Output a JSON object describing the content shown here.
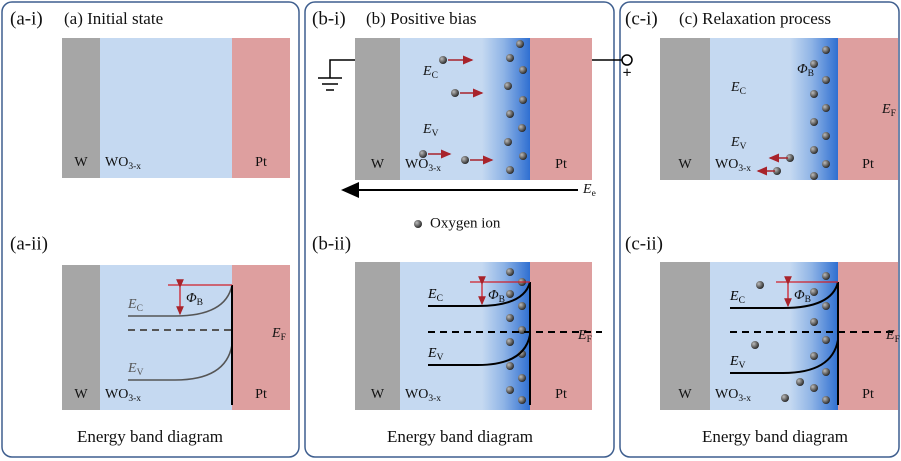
{
  "panels": [
    {
      "top_label": "(a-i)",
      "title": "(a) Initial state",
      "bottom_label": "(a-ii)",
      "caption": "Energy band diagram",
      "top": {
        "metal_left": "W",
        "oxide": {
          "base": "WO",
          "sub": "3-x"
        },
        "metal_right": "Pt"
      },
      "bottom": {
        "metal_left": "W",
        "oxide": {
          "base": "WO",
          "sub": "3-x"
        },
        "metal_right": "Pt",
        "ec": {
          "base": "E",
          "sub": "C"
        },
        "ev": {
          "base": "E",
          "sub": "V"
        },
        "phi": {
          "base": "Φ",
          "sub": "B"
        },
        "ef": {
          "base": "E",
          "sub": "F"
        }
      }
    },
    {
      "top_label": "(b-i)",
      "title": "(b) Positive bias",
      "bottom_label": "(b-ii)",
      "caption": "Energy band diagram",
      "top": {
        "metal_left": "W",
        "oxide": {
          "base": "WO",
          "sub": "3-x"
        },
        "metal_right": "Pt",
        "ec": {
          "base": "E",
          "sub": "C"
        },
        "ev": {
          "base": "E",
          "sub": "V"
        },
        "field": {
          "base": "E",
          "sub": "e"
        },
        "terminal": "+",
        "legend": "Oxygen ion"
      },
      "bottom": {
        "metal_left": "W",
        "oxide": {
          "base": "WO",
          "sub": "3-x"
        },
        "metal_right": "Pt",
        "ec": {
          "base": "E",
          "sub": "C"
        },
        "ev": {
          "base": "E",
          "sub": "V"
        },
        "phi": {
          "base": "Φ",
          "sub": "B"
        },
        "ef": {
          "base": "E",
          "sub": "F"
        }
      }
    },
    {
      "top_label": "(c-i)",
      "title": "(c) Relaxation process",
      "bottom_label": "(c-ii)",
      "caption": "Energy band diagram",
      "top": {
        "metal_left": "W",
        "oxide": {
          "base": "WO",
          "sub": "3-x"
        },
        "metal_right": "Pt",
        "ec": {
          "base": "E",
          "sub": "C"
        },
        "ev": {
          "base": "E",
          "sub": "V"
        },
        "phi": {
          "base": "Φ",
          "sub": "B"
        },
        "ef": {
          "base": "E",
          "sub": "F"
        }
      },
      "bottom": {
        "metal_left": "W",
        "oxide": {
          "base": "WO",
          "sub": "3-x"
        },
        "metal_right": "Pt",
        "ec": {
          "base": "E",
          "sub": "C"
        },
        "ev": {
          "base": "E",
          "sub": "V"
        },
        "phi": {
          "base": "Φ",
          "sub": "B"
        },
        "ef": {
          "base": "E",
          "sub": "F"
        }
      }
    }
  ]
}
